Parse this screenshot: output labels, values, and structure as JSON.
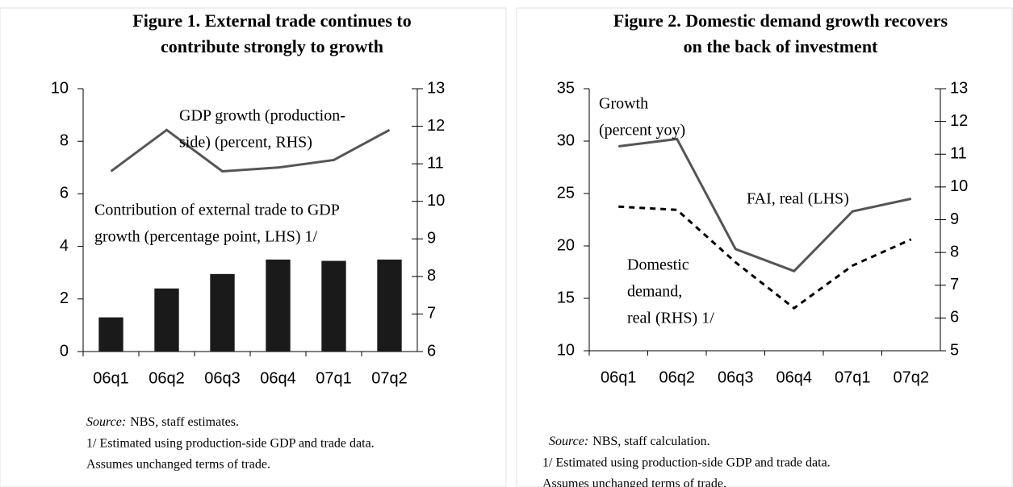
{
  "chart_data": [
    {
      "type": "bar",
      "title": [
        "Figure 1. External trade continues to",
        "contribute strongly to growth"
      ],
      "categories": [
        "06q1",
        "06q2",
        "06q3",
        "06q4",
        "07q1",
        "07q2"
      ],
      "series": [
        {
          "type": "bar",
          "color": "#1a1a1a",
          "values": [
            1.3,
            2.4,
            2.95,
            3.5,
            3.45,
            3.5
          ]
        },
        {
          "type": "line",
          "color": "#555555",
          "axis": "y2",
          "values": [
            10.8,
            11.9,
            10.8,
            10.9,
            11.1,
            11.9
          ]
        }
      ],
      "ylim": [
        0,
        10
      ],
      "yticks": [
        0,
        2,
        4,
        6,
        8,
        10
      ],
      "y2lim": [
        6,
        13
      ],
      "y2ticks": [
        6,
        7,
        8,
        9,
        10,
        11,
        12,
        13
      ],
      "annotations": [
        {
          "lines": [
            "GDP growth  (production-",
            "side) (percent, RHS)"
          ]
        },
        {
          "lines": [
            "Contribution of external trade to GDP",
            "growth (percentage point, LHS) 1/"
          ]
        }
      ],
      "source_label": "Source:",
      "source": "NBS, staff estimates.",
      "notes": [
        "1/ Estimated using production-side GDP and trade data.",
        "Assumes unchanged terms of trade."
      ]
    },
    {
      "type": "line",
      "title": [
        "Figure 2. Domestic demand growth recovers",
        "on the back of investment"
      ],
      "categories": [
        "06q1",
        "06q2",
        "06q3",
        "06q4",
        "07q1",
        "07q2"
      ],
      "series": [
        {
          "type": "line",
          "color": "#555555",
          "values": [
            29.5,
            30.2,
            19.7,
            17.6,
            23.3,
            24.5
          ]
        },
        {
          "type": "line",
          "color": "#000000",
          "dashed": true,
          "axis": "y2",
          "values": [
            9.4,
            9.3,
            7.7,
            6.3,
            7.6,
            8.4
          ]
        }
      ],
      "ylim": [
        10,
        35
      ],
      "yticks": [
        10,
        15,
        20,
        25,
        30,
        35
      ],
      "y2lim": [
        5,
        13
      ],
      "y2ticks": [
        5,
        6,
        7,
        8,
        9,
        10,
        11,
        12,
        13
      ],
      "annotations": [
        {
          "lines": [
            "Growth",
            "(percent yoy)"
          ]
        },
        {
          "lines": [
            "FAI, real (LHS)"
          ]
        },
        {
          "lines": [
            "Domestic",
            "demand,",
            "real (RHS) 1/"
          ]
        }
      ],
      "source_label": "Source:",
      "source": "NBS, staff calculation.",
      "notes": [
        "1/ Estimated using production-side GDP and trade data.",
        "Assumes unchanged terms of trade."
      ]
    }
  ]
}
